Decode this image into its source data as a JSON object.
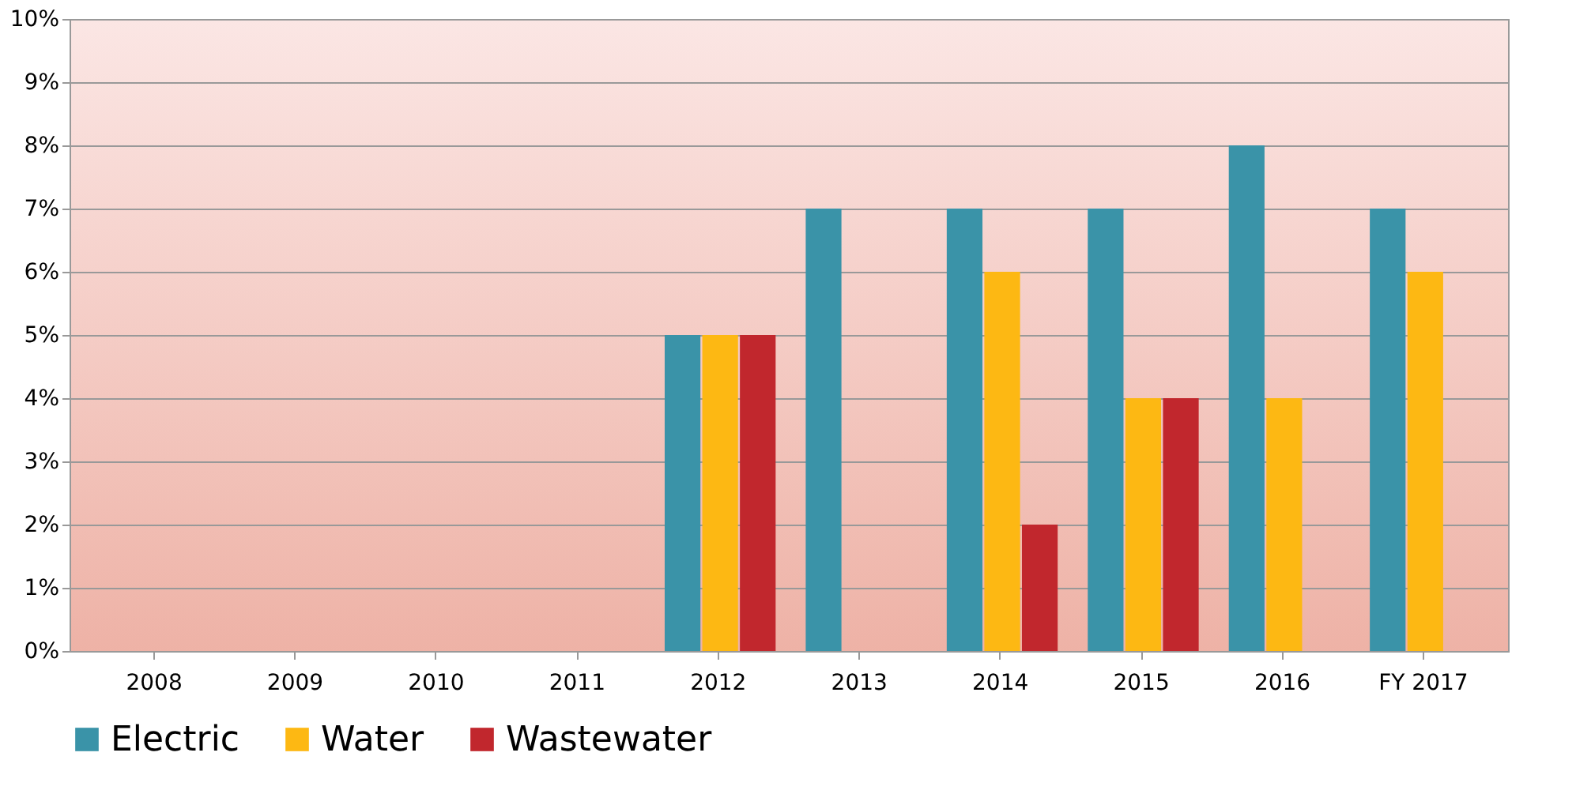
{
  "chart_data": {
    "type": "bar",
    "categories": [
      "2008",
      "2009",
      "2010",
      "2011",
      "2012",
      "2013",
      "2014",
      "2015",
      "2016",
      "FY 2017"
    ],
    "series": [
      {
        "name": "Electric",
        "color": "#3a93a8",
        "values": [
          0,
          0,
          0,
          0,
          5,
          7,
          7,
          7,
          8,
          7
        ]
      },
      {
        "name": "Water",
        "color": "#fdb813",
        "values": [
          0,
          0,
          0,
          0,
          5,
          0,
          6,
          4,
          4,
          6
        ]
      },
      {
        "name": "Wastewater",
        "color": "#c1272d",
        "values": [
          0,
          0,
          0,
          0,
          5,
          0,
          2,
          4,
          0,
          0
        ]
      }
    ],
    "ylim": [
      0,
      10
    ],
    "yticks": [
      {
        "value": 0,
        "label": "0%"
      },
      {
        "value": 1,
        "label": "1%"
      },
      {
        "value": 2,
        "label": "2%"
      },
      {
        "value": 3,
        "label": "3%"
      },
      {
        "value": 4,
        "label": "4%"
      },
      {
        "value": 5,
        "label": "5%"
      },
      {
        "value": 6,
        "label": "6%"
      },
      {
        "value": 7,
        "label": "7%"
      },
      {
        "value": 8,
        "label": "8%"
      },
      {
        "value": 9,
        "label": "9%"
      },
      {
        "value": 10,
        "label": "10%"
      }
    ],
    "grid": "y",
    "legend": "bottom"
  }
}
